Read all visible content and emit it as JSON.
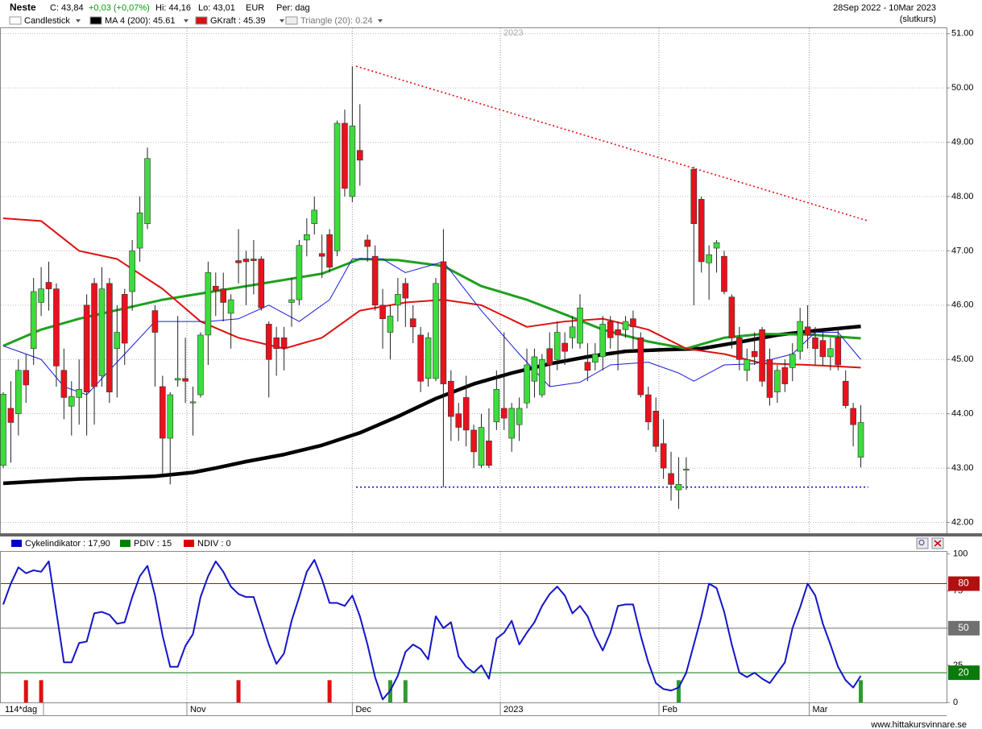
{
  "header": {
    "ticker": "Neste",
    "close": "C: 43,84",
    "change": "+0,03 (+0,07%)",
    "high": "Hi: 44,16",
    "low": "Lo: 43,01",
    "currency": "EUR",
    "period": "Per: dag",
    "range": "28Sep 2022 - 10Mar 2023",
    "price_type": "(slutkurs)"
  },
  "footer": "www.hittakursvinnare.se",
  "chart_data": [
    {
      "type": "candlestick",
      "legend": [
        {
          "name": "Candlestick",
          "color": "#ffffff"
        },
        {
          "name": "MA 4 (200): 45.61",
          "color": "#000000"
        },
        {
          "name": "GKraft : 45.39",
          "color": "#d81010"
        },
        {
          "name": "Triangle (20): 0.24",
          "color": "#eeeeee"
        }
      ],
      "up_color": "#3ddc3d",
      "down_color": "#e8121c",
      "open": [
        43.05,
        44.1,
        44.0,
        44.8,
        45.2,
        46.05,
        46.42,
        46.3,
        44.8,
        44.14,
        44.3,
        46.0,
        46.4,
        44.7,
        46.4,
        45.2,
        46.2,
        46.25,
        47.05,
        47.5,
        45.9,
        44.5,
        43.55,
        44.62,
        44.65,
        44.2,
        44.35,
        45.45,
        46.35,
        46.3,
        45.85,
        46.82,
        46.85,
        46.85,
        46.85,
        45.65,
        45.4,
        45.4,
        46.05,
        46.1,
        47.2,
        47.5,
        46.95,
        47.3,
        47.0,
        49.35,
        48.0,
        48.85,
        47.2,
        46.9,
        46.0,
        45.5,
        46.0,
        46.4,
        45.75,
        45.45,
        44.65,
        44.65,
        46.8,
        44.6,
        44.0,
        44.3,
        43.7,
        43.05,
        43.5,
        43.85,
        44.1,
        43.55,
        43.8,
        44.2,
        44.6,
        44.35,
        45.2,
        45.0,
        45.3,
        45.4,
        45.3,
        44.95,
        44.95,
        45.05,
        45.7,
        45.55,
        45.55,
        45.75,
        45.4,
        44.35,
        44.05,
        43.45,
        42.9,
        42.6,
        42.96,
        48.5,
        47.95,
        46.78,
        47.05,
        46.9,
        46.15,
        45.4,
        44.8,
        45.15,
        45.55,
        45.0,
        44.4,
        44.85,
        44.85,
        45.15,
        45.6,
        45.4,
        45.35,
        45.05,
        45.4,
        44.6,
        44.1,
        43.2
      ],
      "high": [
        44.4,
        44.6,
        45.0,
        45.1,
        46.5,
        46.7,
        46.8,
        46.4,
        45.2,
        44.6,
        45.0,
        46.2,
        46.5,
        46.7,
        46.5,
        46.0,
        46.3,
        47.2,
        48.0,
        48.9,
        46.0,
        44.7,
        44.4,
        45.8,
        45.4,
        44.5,
        45.5,
        46.8,
        46.6,
        46.6,
        46.2,
        47.4,
        47.0,
        47.2,
        46.9,
        45.7,
        45.6,
        45.6,
        46.5,
        47.2,
        47.6,
        48.0,
        47.3,
        47.4,
        49.4,
        49.6,
        50.4,
        49.7,
        47.3,
        47.1,
        46.3,
        46.0,
        46.5,
        46.5,
        46.0,
        45.6,
        45.5,
        46.5,
        47.4,
        44.8,
        44.2,
        44.7,
        43.8,
        44.0,
        44.1,
        44.8,
        45.5,
        44.2,
        44.3,
        45.2,
        45.2,
        45.1,
        45.5,
        45.7,
        45.5,
        45.8,
        46.2,
        45.3,
        45.3,
        45.8,
        45.8,
        45.7,
        45.8,
        45.9,
        45.5,
        44.5,
        44.3,
        43.9,
        43.3,
        43.2,
        43.2,
        48.55,
        48.0,
        47.1,
        47.2,
        47.0,
        46.2,
        45.6,
        45.2,
        45.5,
        45.6,
        45.2,
        44.9,
        45.0,
        45.3,
        45.95,
        46.0,
        45.6,
        45.5,
        45.4,
        45.6,
        44.8,
        44.2,
        44.16
      ],
      "low": [
        43.0,
        43.1,
        43.6,
        44.2,
        44.9,
        45.8,
        45.9,
        44.5,
        43.9,
        43.6,
        43.8,
        43.6,
        43.8,
        44.5,
        44.2,
        44.3,
        44.9,
        45.9,
        46.8,
        47.4,
        44.5,
        42.9,
        42.7,
        44.5,
        44.2,
        43.6,
        44.3,
        44.9,
        45.8,
        45.7,
        45.2,
        46.4,
        46.0,
        46.2,
        45.9,
        44.3,
        44.7,
        44.8,
        45.6,
        46.0,
        46.9,
        47.3,
        46.5,
        46.6,
        46.9,
        48.0,
        47.9,
        48.2,
        46.8,
        45.9,
        45.2,
        45.0,
        45.7,
        45.6,
        45.3,
        44.4,
        44.5,
        44.6,
        42.65,
        43.5,
        43.5,
        43.4,
        43.0,
        43.0,
        43.0,
        43.7,
        43.7,
        43.3,
        43.5,
        44.1,
        44.3,
        44.3,
        44.5,
        44.8,
        44.9,
        45.2,
        45.2,
        44.6,
        44.8,
        44.8,
        45.2,
        44.8,
        45.4,
        45.2,
        44.3,
        43.7,
        43.3,
        42.8,
        42.4,
        42.25,
        42.6,
        46.0,
        46.6,
        46.1,
        46.6,
        46.2,
        45.2,
        44.8,
        44.6,
        44.9,
        44.5,
        44.15,
        44.2,
        44.4,
        44.6,
        45.0,
        45.2,
        44.9,
        44.9,
        44.8,
        44.8,
        44.1,
        43.4,
        43.01
      ],
      "close": [
        44.36,
        43.84,
        44.8,
        44.53,
        46.25,
        46.3,
        46.3,
        44.88,
        44.3,
        44.32,
        44.45,
        44.4,
        44.5,
        46.3,
        44.4,
        45.5,
        45.3,
        47.0,
        47.7,
        48.7,
        45.5,
        43.55,
        44.35,
        44.65,
        44.6,
        44.22,
        45.45,
        46.6,
        46.27,
        46.05,
        46.1,
        46.78,
        46.8,
        46.82,
        45.95,
        45.0,
        45.2,
        45.22,
        46.1,
        47.1,
        47.3,
        47.75,
        46.9,
        46.7,
        49.35,
        48.15,
        49.3,
        48.67,
        47.08,
        46.0,
        45.75,
        45.8,
        46.2,
        46.13,
        45.6,
        44.6,
        45.4,
        46.4,
        44.55,
        43.95,
        43.75,
        43.7,
        43.3,
        43.75,
        43.05,
        44.45,
        43.92,
        44.1,
        44.1,
        44.9,
        45.05,
        45.0,
        44.9,
        45.5,
        45.15,
        45.6,
        45.95,
        44.8,
        45.1,
        45.65,
        45.4,
        45.45,
        45.7,
        45.6,
        44.35,
        43.85,
        43.4,
        43.0,
        42.7,
        42.7,
        42.98,
        47.5,
        46.8,
        46.93,
        47.15,
        46.25,
        45.4,
        45.0,
        45.0,
        45.05,
        44.6,
        44.3,
        44.8,
        44.55,
        45.1,
        45.7,
        45.45,
        45.2,
        45.05,
        45.2,
        44.9,
        44.15,
        43.8,
        43.84
      ],
      "lines": [
        {
          "color": "#000000",
          "width": 4.5,
          "x": [
            0,
            5,
            10,
            15,
            20,
            25,
            28,
            32,
            37,
            42,
            47,
            52,
            57,
            62,
            67,
            72,
            77,
            82,
            87,
            92,
            97,
            102,
            107,
            113
          ],
          "values": [
            42.72,
            42.76,
            42.8,
            42.82,
            42.85,
            42.92,
            43.0,
            43.12,
            43.25,
            43.42,
            43.65,
            43.95,
            44.28,
            44.55,
            44.75,
            44.92,
            45.05,
            45.15,
            45.18,
            45.2,
            45.32,
            45.45,
            45.53,
            45.61
          ]
        },
        {
          "color": "#1fa01f",
          "width": 3,
          "x": [
            0,
            5,
            10,
            21,
            32,
            42,
            47,
            52,
            58,
            63,
            69,
            74,
            79,
            85,
            90,
            95,
            100,
            106,
            113
          ],
          "values": [
            45.25,
            45.55,
            45.75,
            46.1,
            46.35,
            46.58,
            46.85,
            46.83,
            46.72,
            46.35,
            46.1,
            45.83,
            45.55,
            45.33,
            45.2,
            45.4,
            45.47,
            45.46,
            45.39
          ]
        },
        {
          "color": "#e01010",
          "width": 2,
          "x": [
            0,
            5,
            10,
            15,
            21,
            26,
            31,
            37,
            42,
            47,
            53,
            58,
            63,
            69,
            74,
            79,
            85,
            90,
            95,
            100,
            106,
            113
          ],
          "values": [
            47.6,
            47.55,
            47.0,
            46.85,
            46.3,
            45.7,
            45.4,
            45.2,
            45.4,
            45.9,
            46.05,
            46.1,
            46.0,
            45.6,
            45.7,
            45.75,
            45.55,
            45.2,
            45.1,
            44.93,
            44.9,
            44.85
          ]
        },
        {
          "color": "#1a1adc",
          "width": 1,
          "x": [
            0,
            5,
            8,
            11,
            16,
            20,
            24,
            27,
            31,
            35,
            39,
            43,
            46,
            50,
            53,
            58,
            63,
            68,
            72,
            76,
            80,
            85,
            89,
            91,
            95,
            99,
            104,
            107,
            110,
            113
          ],
          "values": [
            45.25,
            45.0,
            44.5,
            44.35,
            45.1,
            45.7,
            45.7,
            45.7,
            45.75,
            46.0,
            45.7,
            46.1,
            46.85,
            46.85,
            46.6,
            46.8,
            45.9,
            45.1,
            44.5,
            44.58,
            44.9,
            44.95,
            44.75,
            44.6,
            44.9,
            44.92,
            45.1,
            45.5,
            45.5,
            45.0
          ]
        }
      ],
      "triangle": [
        {
          "color": "#e01010",
          "x": [
            46.5,
            114
          ],
          "values": [
            50.4,
            47.55
          ]
        },
        {
          "color": "#1010c0",
          "x": [
            46.5,
            114
          ],
          "values": [
            42.65,
            42.65
          ]
        }
      ],
      "xlim": [
        0,
        124.3
      ],
      "ylim": [
        41.8,
        51.1
      ],
      "yticks": [
        {
          "value": 42,
          "label": "42.00"
        },
        {
          "value": 43,
          "label": "43.00"
        },
        {
          "value": 44,
          "label": "44.00"
        },
        {
          "value": 45,
          "label": "45.00"
        },
        {
          "value": 46,
          "label": "46.00"
        },
        {
          "value": 47,
          "label": "47.00"
        },
        {
          "value": 48,
          "label": "48.00"
        },
        {
          "value": 49,
          "label": "49.00"
        },
        {
          "value": 50,
          "label": "50.00"
        },
        {
          "value": 51,
          "label": "51.00"
        }
      ],
      "grid": true
    },
    {
      "type": "line",
      "legend": [
        {
          "name": "Cykelindikator : 17,90",
          "color": "#0000cc"
        },
        {
          "name": "PDIV : 15",
          "color": "#008000"
        },
        {
          "name": "NDIV : 0",
          "color": "#dd0000"
        }
      ],
      "series": [
        {
          "color": "#1414c8",
          "values": [
            66,
            80,
            91,
            87,
            89,
            88,
            95,
            61,
            27,
            27,
            40,
            41,
            60,
            61,
            59,
            53,
            54,
            71,
            85,
            92,
            72,
            45,
            24,
            24,
            38,
            46,
            71,
            85,
            95,
            88,
            78,
            73,
            71,
            71,
            55,
            39,
            26,
            33,
            55,
            71,
            88,
            96,
            83,
            67,
            67,
            65,
            72,
            58,
            39,
            17,
            2,
            8,
            18,
            34,
            39,
            36,
            29,
            58,
            50,
            54,
            31,
            24,
            20,
            25,
            16,
            43,
            47,
            55,
            39,
            47,
            54,
            65,
            73,
            78,
            72,
            60,
            65,
            58,
            45,
            35,
            47,
            65,
            66,
            66,
            45,
            27,
            13,
            9,
            8,
            10,
            20,
            39,
            58,
            80,
            77,
            61,
            39,
            20,
            17,
            20,
            16,
            13,
            20,
            27,
            50,
            64,
            80,
            72,
            53,
            39,
            24,
            15,
            10,
            17.9
          ]
        }
      ],
      "bars": [
        {
          "color": "#2e9a2e",
          "x": [
            51,
            53,
            89,
            113
          ],
          "values": [
            15,
            15,
            15,
            15
          ]
        },
        {
          "color": "#dd1111",
          "x": [
            3,
            5,
            31,
            43
          ],
          "values": [
            15,
            15,
            15,
            15
          ]
        }
      ],
      "levels": [
        {
          "value": 80,
          "color": "#b01010"
        },
        {
          "value": 50,
          "color": "#707070"
        },
        {
          "value": 20,
          "color": "#0a7a0a"
        }
      ],
      "period_label": "114*dag",
      "xlim": [
        0,
        124.3
      ],
      "ylim": [
        0,
        102
      ],
      "yticks": [
        0,
        25,
        50,
        75,
        100
      ],
      "xticks": [
        {
          "value": 24.2,
          "label": "Nov"
        },
        {
          "value": 46,
          "label": "Dec"
        },
        {
          "value": 65.5,
          "label": "2023"
        },
        {
          "value": 86.4,
          "label": "Feb"
        },
        {
          "value": 106.2,
          "label": "Mar"
        }
      ]
    }
  ]
}
